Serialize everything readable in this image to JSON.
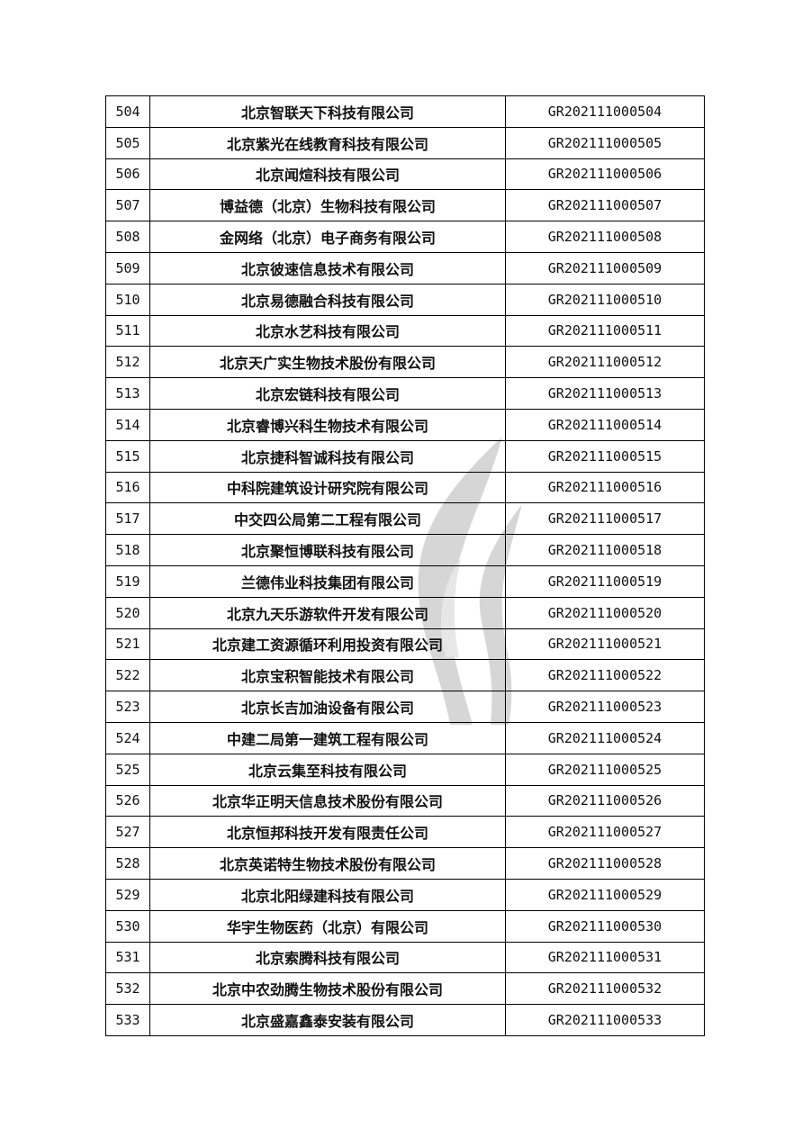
{
  "table": {
    "rows": [
      {
        "no": "504",
        "name": "北京智联天下科技有限公司",
        "code": "GR202111000504"
      },
      {
        "no": "505",
        "name": "北京紫光在线教育科技有限公司",
        "code": "GR202111000505"
      },
      {
        "no": "506",
        "name": "北京闻煊科技有限公司",
        "code": "GR202111000506"
      },
      {
        "no": "507",
        "name": "博益德（北京）生物科技有限公司",
        "code": "GR202111000507"
      },
      {
        "no": "508",
        "name": "金网络（北京）电子商务有限公司",
        "code": "GR202111000508"
      },
      {
        "no": "509",
        "name": "北京彼速信息技术有限公司",
        "code": "GR202111000509"
      },
      {
        "no": "510",
        "name": "北京易德融合科技有限公司",
        "code": "GR202111000510"
      },
      {
        "no": "511",
        "name": "北京水艺科技有限公司",
        "code": "GR202111000511"
      },
      {
        "no": "512",
        "name": "北京天广实生物技术股份有限公司",
        "code": "GR202111000512"
      },
      {
        "no": "513",
        "name": "北京宏链科技有限公司",
        "code": "GR202111000513"
      },
      {
        "no": "514",
        "name": "北京睿博兴科生物技术有限公司",
        "code": "GR202111000514"
      },
      {
        "no": "515",
        "name": "北京捷科智诚科技有限公司",
        "code": "GR202111000515"
      },
      {
        "no": "516",
        "name": "中科院建筑设计研究院有限公司",
        "code": "GR202111000516"
      },
      {
        "no": "517",
        "name": "中交四公局第二工程有限公司",
        "code": "GR202111000517"
      },
      {
        "no": "518",
        "name": "北京聚恒博联科技有限公司",
        "code": "GR202111000518"
      },
      {
        "no": "519",
        "name": "兰德伟业科技集团有限公司",
        "code": "GR202111000519"
      },
      {
        "no": "520",
        "name": "北京九天乐游软件开发有限公司",
        "code": "GR202111000520"
      },
      {
        "no": "521",
        "name": "北京建工资源循环利用投资有限公司",
        "code": "GR202111000521"
      },
      {
        "no": "522",
        "name": "北京宝积智能技术有限公司",
        "code": "GR202111000522"
      },
      {
        "no": "523",
        "name": "北京长吉加油设备有限公司",
        "code": "GR202111000523"
      },
      {
        "no": "524",
        "name": "中建二局第一建筑工程有限公司",
        "code": "GR202111000524"
      },
      {
        "no": "525",
        "name": "北京云集至科技有限公司",
        "code": "GR202111000525"
      },
      {
        "no": "526",
        "name": "北京华正明天信息技术股份有限公司",
        "code": "GR202111000526"
      },
      {
        "no": "527",
        "name": "北京恒邦科技开发有限责任公司",
        "code": "GR202111000527"
      },
      {
        "no": "528",
        "name": "北京英诺特生物技术股份有限公司",
        "code": "GR202111000528"
      },
      {
        "no": "529",
        "name": "北京北阳绿建科技有限公司",
        "code": "GR202111000529"
      },
      {
        "no": "530",
        "name": "华宇生物医药（北京）有限公司",
        "code": "GR202111000530"
      },
      {
        "no": "531",
        "name": "北京索腾科技有限公司",
        "code": "GR202111000531"
      },
      {
        "no": "532",
        "name": "北京中农劲腾生物技术股份有限公司",
        "code": "GR202111000532"
      },
      {
        "no": "533",
        "name": "北京盛嘉鑫泰安装有限公司",
        "code": "GR202111000533"
      }
    ]
  },
  "watermark": {
    "icon": "flame-logo-icon",
    "color": "#9a9a9a"
  }
}
